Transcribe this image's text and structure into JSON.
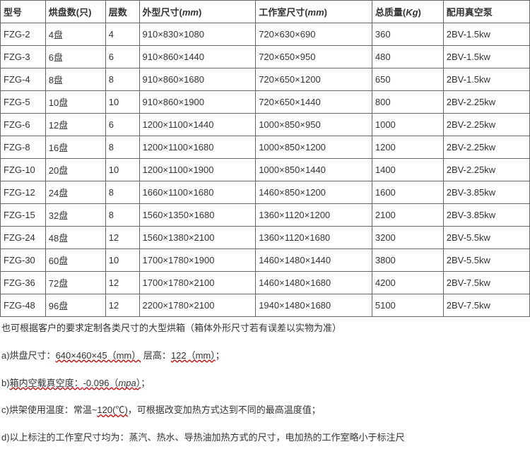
{
  "table": {
    "headers": {
      "model": "型号",
      "trays": "烘盘数(只)",
      "layers": "层数",
      "outer_dim": "外型尺寸(",
      "outer_dim_unit": "mm",
      "outer_dim_close": ")",
      "inner_dim": "工作室尺寸(",
      "inner_dim_unit": "mm",
      "inner_dim_close": ")",
      "weight": "总质量(",
      "weight_unit": "Kg",
      "weight_close": ")",
      "pump": "配用真空泵"
    },
    "rows": [
      {
        "model": "FZG-2",
        "trays": "4盘",
        "layers": "4",
        "outer": "910×830×1080",
        "inner": "720×630×690",
        "weight": "360",
        "pump": "2BV-1.5kw"
      },
      {
        "model": "FZG-3",
        "trays": "6盘",
        "layers": "6",
        "outer": "910×860×1440",
        "inner": "720×650×950",
        "weight": "480",
        "pump": "2BV-1.5kw"
      },
      {
        "model": "FZG-4",
        "trays": "8盘",
        "layers": "8",
        "outer": "910×860×1680",
        "inner": "720×650×1200",
        "weight": "650",
        "pump": "2BV-1.5kw"
      },
      {
        "model": "FZG-5",
        "trays": "10盘",
        "layers": "10",
        "outer": "910×860×1900",
        "inner": "720×650×1440",
        "weight": "800",
        "pump": "2BV-2.25kw"
      },
      {
        "model": "FZG-6",
        "trays": "12盘",
        "layers": "6",
        "outer": "1200×1100×1440",
        "inner": "1000×850×950",
        "weight": "1000",
        "pump": "2BV-2.25kw"
      },
      {
        "model": "FZG-8",
        "trays": "16盘",
        "layers": "8",
        "outer": "1200×1100×1680",
        "inner": "1000×850×1200",
        "weight": "1200",
        "pump": "2BV-2.25kw"
      },
      {
        "model": "FZG-10",
        "trays": "20盘",
        "layers": "10",
        "outer": "1200×1100×1900",
        "inner": "1000×850×1440",
        "weight": "1400",
        "pump": "2BV-2.25kw"
      },
      {
        "model": "FZG-12",
        "trays": "24盘",
        "layers": "8",
        "outer": "1660×1100×1680",
        "inner": "1460×850×1200",
        "weight": "1600",
        "pump": "2BV-3.85kw"
      },
      {
        "model": "FZG-15",
        "trays": "32盘",
        "layers": "8",
        "outer": "1560×1350×1680",
        "inner": "1360×1120×1200",
        "weight": "2100",
        "pump": "2BV-3.85kw"
      },
      {
        "model": "FZG-24",
        "trays": "48盘",
        "layers": "12",
        "outer": "1560×1380×2100",
        "inner": "1360×1120×1680",
        "weight": "3200",
        "pump": "2BV-5.5kw"
      },
      {
        "model": "FZG-30",
        "trays": "60盘",
        "layers": "10",
        "outer": "1700×1780×1900",
        "inner": "1460×1480×1440",
        "weight": "3800",
        "pump": "2BV-5.5kw"
      },
      {
        "model": "FZG-36",
        "trays": "72盘",
        "layers": "12",
        "outer": "1700×1780×2100",
        "inner": "1460×1480×1680",
        "weight": "4200",
        "pump": "2BV-7.5kw"
      },
      {
        "model": "FZG-48",
        "trays": "96盘",
        "layers": "12",
        "outer": "2200×1780×2100",
        "inner": "1940×1480×1680",
        "weight": "5100",
        "pump": "2BV-7.5kw"
      }
    ]
  },
  "notes": {
    "intro": "也可根据客户的要求定制各类尺寸的大型烘箱（箱体外形尺寸若有误差以实物为准）",
    "a_pre": "a)烘盘尺寸：",
    "a_dim": "640×460×45（mm）",
    "a_mid": " 层高：",
    "a_val": "122（mm）",
    "a_end": "；",
    "b_pre": "b)",
    "b_txt": "箱内空载真空度：",
    "b_val": "-0.096（",
    "b_unit": "mpa",
    "b_close": "）",
    "b_end": "；",
    "c_pre": "c)烘架使用温度：常温~",
    "c_val": "120(℃)",
    "c_end": "，可根据改变加热方式达到不同的最高温度值；",
    "d": "d)以上标注的工作室尺寸均为：蒸汽、热水、导热油加热方式的尺寸，电加热的工作室略小于标注尺"
  }
}
